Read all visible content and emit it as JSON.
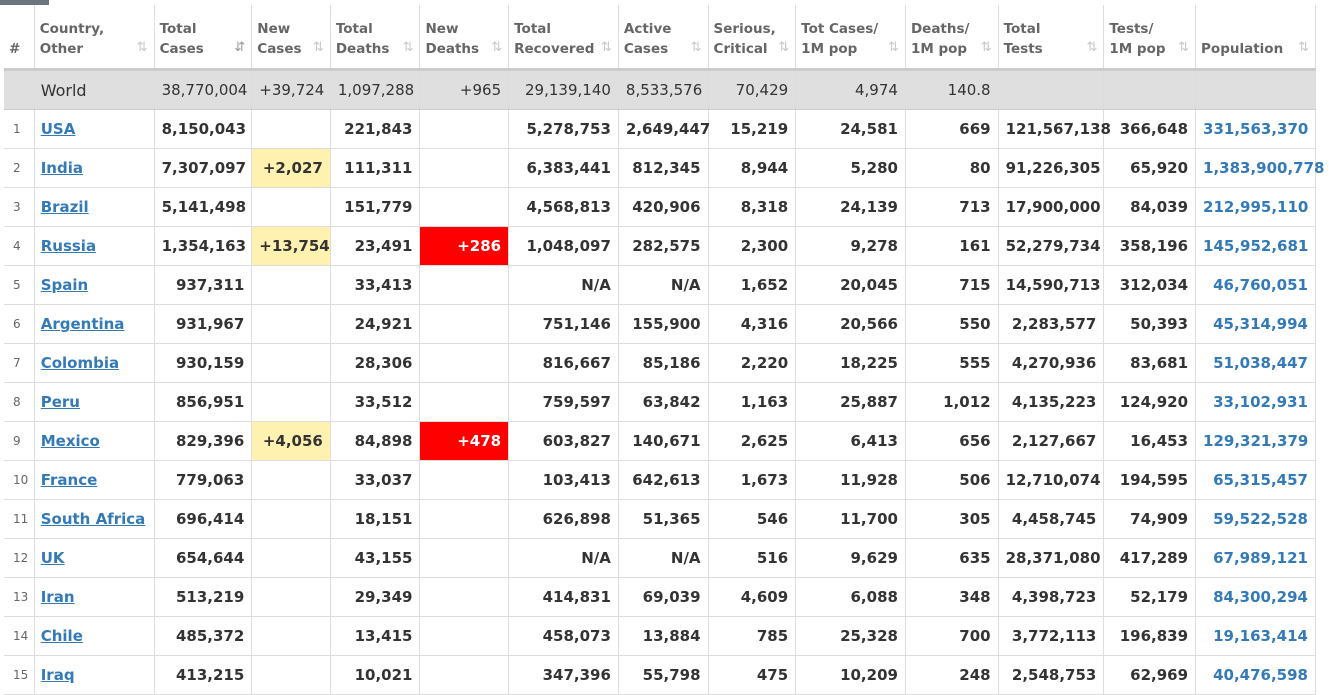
{
  "headers": [
    {
      "l1": "#",
      "l2": "",
      "sort": false
    },
    {
      "l1": "Country,",
      "l2": "Other",
      "sort": true
    },
    {
      "l1": "Total",
      "l2": "Cases",
      "sort": true,
      "active": true
    },
    {
      "l1": "New",
      "l2": "Cases",
      "sort": true
    },
    {
      "l1": "Total",
      "l2": "Deaths",
      "sort": true
    },
    {
      "l1": "New",
      "l2": "Deaths",
      "sort": true
    },
    {
      "l1": "Total",
      "l2": "Recovered",
      "sort": true
    },
    {
      "l1": "Active",
      "l2": "Cases",
      "sort": true
    },
    {
      "l1": "Serious,",
      "l2": "Critical",
      "sort": true
    },
    {
      "l1": "Tot Cases/",
      "l2": "1M pop",
      "sort": true
    },
    {
      "l1": "Deaths/",
      "l2": "1M pop",
      "sort": true
    },
    {
      "l1": "Total",
      "l2": "Tests",
      "sort": true
    },
    {
      "l1": "Tests/",
      "l2": "1M pop",
      "sort": true
    },
    {
      "l1": "Population",
      "l2": "",
      "sort": true
    }
  ],
  "world": {
    "name": "World",
    "total_cases": "38,770,004",
    "new_cases": "+39,724",
    "total_deaths": "1,097,288",
    "new_deaths": "+965",
    "total_recovered": "29,139,140",
    "active_cases": "8,533,576",
    "serious": "70,429",
    "cases_per_1m": "4,974",
    "deaths_per_1m": "140.8",
    "total_tests": "",
    "tests_per_1m": "",
    "population": ""
  },
  "rows": [
    {
      "idx": "1",
      "name": "USA",
      "total_cases": "8,150,043",
      "new_cases": "",
      "total_deaths": "221,843",
      "new_deaths": "",
      "total_recovered": "5,278,753",
      "active_cases": "2,649,447",
      "serious": "15,219",
      "cases_per_1m": "24,581",
      "deaths_per_1m": "669",
      "total_tests": "121,567,138",
      "tests_per_1m": "366,648",
      "population": "331,563,370"
    },
    {
      "idx": "2",
      "name": "India",
      "total_cases": "7,307,097",
      "new_cases": "+2,027",
      "total_deaths": "111,311",
      "new_deaths": "",
      "total_recovered": "6,383,441",
      "active_cases": "812,345",
      "serious": "8,944",
      "cases_per_1m": "5,280",
      "deaths_per_1m": "80",
      "total_tests": "91,226,305",
      "tests_per_1m": "65,920",
      "population": "1,383,900,778"
    },
    {
      "idx": "3",
      "name": "Brazil",
      "total_cases": "5,141,498",
      "new_cases": "",
      "total_deaths": "151,779",
      "new_deaths": "",
      "total_recovered": "4,568,813",
      "active_cases": "420,906",
      "serious": "8,318",
      "cases_per_1m": "24,139",
      "deaths_per_1m": "713",
      "total_tests": "17,900,000",
      "tests_per_1m": "84,039",
      "population": "212,995,110"
    },
    {
      "idx": "4",
      "name": "Russia",
      "total_cases": "1,354,163",
      "new_cases": "+13,754",
      "total_deaths": "23,491",
      "new_deaths": "+286",
      "total_recovered": "1,048,097",
      "active_cases": "282,575",
      "serious": "2,300",
      "cases_per_1m": "9,278",
      "deaths_per_1m": "161",
      "total_tests": "52,279,734",
      "tests_per_1m": "358,196",
      "population": "145,952,681"
    },
    {
      "idx": "5",
      "name": "Spain",
      "total_cases": "937,311",
      "new_cases": "",
      "total_deaths": "33,413",
      "new_deaths": "",
      "total_recovered": "N/A",
      "active_cases": "N/A",
      "serious": "1,652",
      "cases_per_1m": "20,045",
      "deaths_per_1m": "715",
      "total_tests": "14,590,713",
      "tests_per_1m": "312,034",
      "population": "46,760,051"
    },
    {
      "idx": "6",
      "name": "Argentina",
      "total_cases": "931,967",
      "new_cases": "",
      "total_deaths": "24,921",
      "new_deaths": "",
      "total_recovered": "751,146",
      "active_cases": "155,900",
      "serious": "4,316",
      "cases_per_1m": "20,566",
      "deaths_per_1m": "550",
      "total_tests": "2,283,577",
      "tests_per_1m": "50,393",
      "population": "45,314,994"
    },
    {
      "idx": "7",
      "name": "Colombia",
      "total_cases": "930,159",
      "new_cases": "",
      "total_deaths": "28,306",
      "new_deaths": "",
      "total_recovered": "816,667",
      "active_cases": "85,186",
      "serious": "2,220",
      "cases_per_1m": "18,225",
      "deaths_per_1m": "555",
      "total_tests": "4,270,936",
      "tests_per_1m": "83,681",
      "population": "51,038,447"
    },
    {
      "idx": "8",
      "name": "Peru",
      "total_cases": "856,951",
      "new_cases": "",
      "total_deaths": "33,512",
      "new_deaths": "",
      "total_recovered": "759,597",
      "active_cases": "63,842",
      "serious": "1,163",
      "cases_per_1m": "25,887",
      "deaths_per_1m": "1,012",
      "total_tests": "4,135,223",
      "tests_per_1m": "124,920",
      "population": "33,102,931"
    },
    {
      "idx": "9",
      "name": "Mexico",
      "total_cases": "829,396",
      "new_cases": "+4,056",
      "total_deaths": "84,898",
      "new_deaths": "+478",
      "total_recovered": "603,827",
      "active_cases": "140,671",
      "serious": "2,625",
      "cases_per_1m": "6,413",
      "deaths_per_1m": "656",
      "total_tests": "2,127,667",
      "tests_per_1m": "16,453",
      "population": "129,321,379"
    },
    {
      "idx": "10",
      "name": "France",
      "total_cases": "779,063",
      "new_cases": "",
      "total_deaths": "33,037",
      "new_deaths": "",
      "total_recovered": "103,413",
      "active_cases": "642,613",
      "serious": "1,673",
      "cases_per_1m": "11,928",
      "deaths_per_1m": "506",
      "total_tests": "12,710,074",
      "tests_per_1m": "194,595",
      "population": "65,315,457"
    },
    {
      "idx": "11",
      "name": "South Africa",
      "total_cases": "696,414",
      "new_cases": "",
      "total_deaths": "18,151",
      "new_deaths": "",
      "total_recovered": "626,898",
      "active_cases": "51,365",
      "serious": "546",
      "cases_per_1m": "11,700",
      "deaths_per_1m": "305",
      "total_tests": "4,458,745",
      "tests_per_1m": "74,909",
      "population": "59,522,528"
    },
    {
      "idx": "12",
      "name": "UK",
      "total_cases": "654,644",
      "new_cases": "",
      "total_deaths": "43,155",
      "new_deaths": "",
      "total_recovered": "N/A",
      "active_cases": "N/A",
      "serious": "516",
      "cases_per_1m": "9,629",
      "deaths_per_1m": "635",
      "total_tests": "28,371,080",
      "tests_per_1m": "417,289",
      "population": "67,989,121"
    },
    {
      "idx": "13",
      "name": "Iran",
      "total_cases": "513,219",
      "new_cases": "",
      "total_deaths": "29,349",
      "new_deaths": "",
      "total_recovered": "414,831",
      "active_cases": "69,039",
      "serious": "4,609",
      "cases_per_1m": "6,088",
      "deaths_per_1m": "348",
      "total_tests": "4,398,723",
      "tests_per_1m": "52,179",
      "population": "84,300,294"
    },
    {
      "idx": "14",
      "name": "Chile",
      "total_cases": "485,372",
      "new_cases": "",
      "total_deaths": "13,415",
      "new_deaths": "",
      "total_recovered": "458,073",
      "active_cases": "13,884",
      "serious": "785",
      "cases_per_1m": "25,328",
      "deaths_per_1m": "700",
      "total_tests": "3,772,113",
      "tests_per_1m": "196,839",
      "population": "19,163,414"
    },
    {
      "idx": "15",
      "name": "Iraq",
      "total_cases": "413,215",
      "new_cases": "",
      "total_deaths": "10,021",
      "new_deaths": "",
      "total_recovered": "347,396",
      "active_cases": "55,798",
      "serious": "475",
      "cases_per_1m": "10,209",
      "deaths_per_1m": "248",
      "total_tests": "2,548,753",
      "tests_per_1m": "62,969",
      "population": "40,476,598"
    }
  ],
  "colors": {
    "new_cases_bg": "#fff2b0",
    "new_deaths_bg": "#ff0000",
    "link": "#337ab7",
    "world_bg": "#dfdfdf"
  }
}
